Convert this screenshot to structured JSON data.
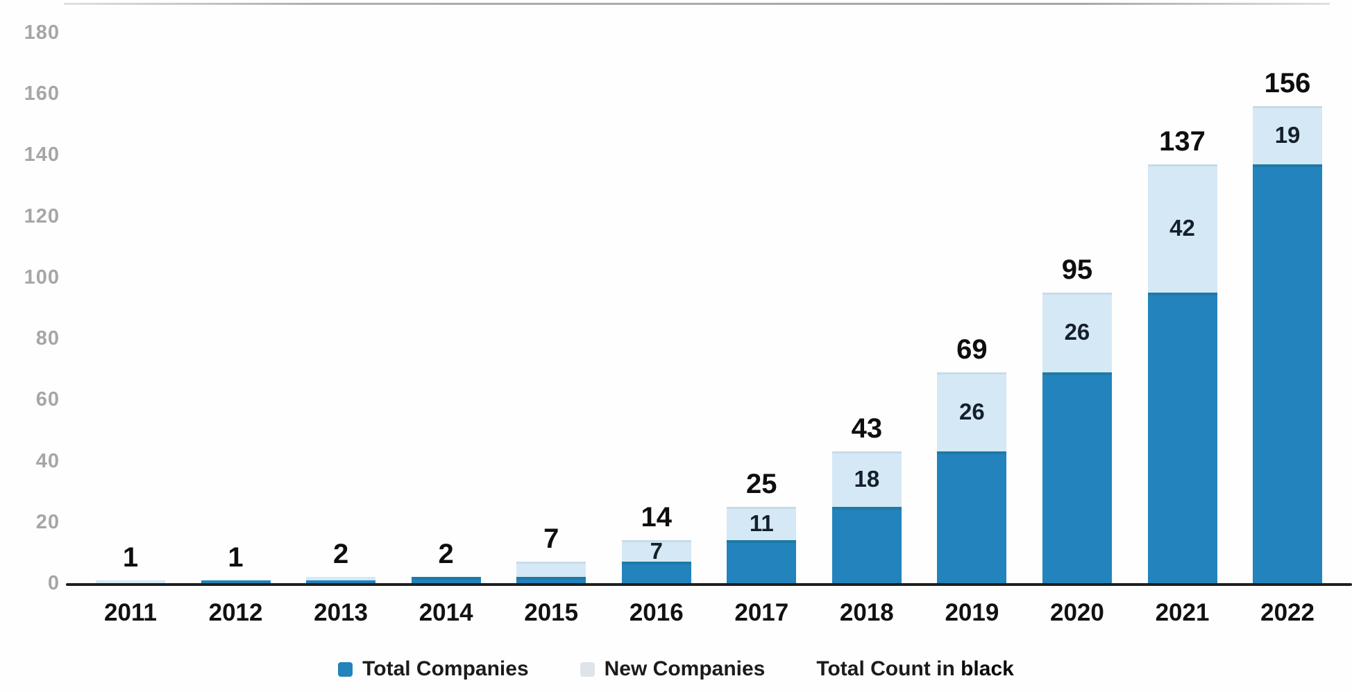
{
  "chart_data": {
    "type": "bar",
    "stacked": true,
    "title": "",
    "xlabel": "",
    "ylabel": "",
    "categories": [
      "2011",
      "2012",
      "2013",
      "2014",
      "2015",
      "2016",
      "2017",
      "2018",
      "2019",
      "2020",
      "2021",
      "2022"
    ],
    "totals": [
      1,
      1,
      2,
      2,
      7,
      14,
      25,
      43,
      69,
      95,
      137,
      156
    ],
    "series": [
      {
        "name": "Total Companies",
        "role": "base-segment",
        "color": "#2383bd",
        "values": [
          0,
          1,
          1,
          2,
          2,
          7,
          14,
          25,
          43,
          69,
          95,
          137
        ]
      },
      {
        "name": "New Companies",
        "role": "top-segment",
        "color": "#d5e8f6",
        "values": [
          1,
          0,
          1,
          0,
          5,
          7,
          11,
          18,
          26,
          26,
          42,
          19
        ]
      }
    ],
    "total_labels": [
      "1",
      "1",
      "2",
      "2",
      "7",
      "14",
      "25",
      "43",
      "69",
      "95",
      "137",
      "156"
    ],
    "segment_labels": [
      "",
      "",
      "",
      "",
      "",
      "7",
      "11",
      "18",
      "26",
      "26",
      "42",
      "19"
    ],
    "ylim": [
      0,
      180
    ],
    "yticks": [
      0,
      20,
      40,
      60,
      80,
      100,
      120,
      140,
      160,
      180
    ],
    "grid": false,
    "legend_position": "bottom"
  },
  "legend": {
    "total_label": "Total Companies",
    "new_label": "New Companies",
    "note_prefix": "Total Count in ",
    "note_bold": "black"
  },
  "colors": {
    "total_fill": "#2383bd",
    "total_edge": "#1d7aa6",
    "new_fill": "#d5e8f6",
    "new_edge": "#c7dae8",
    "axis_line": "#1f1f1f",
    "ytick_text": "#a6a6a6",
    "count_text": "#0e0e0e"
  }
}
